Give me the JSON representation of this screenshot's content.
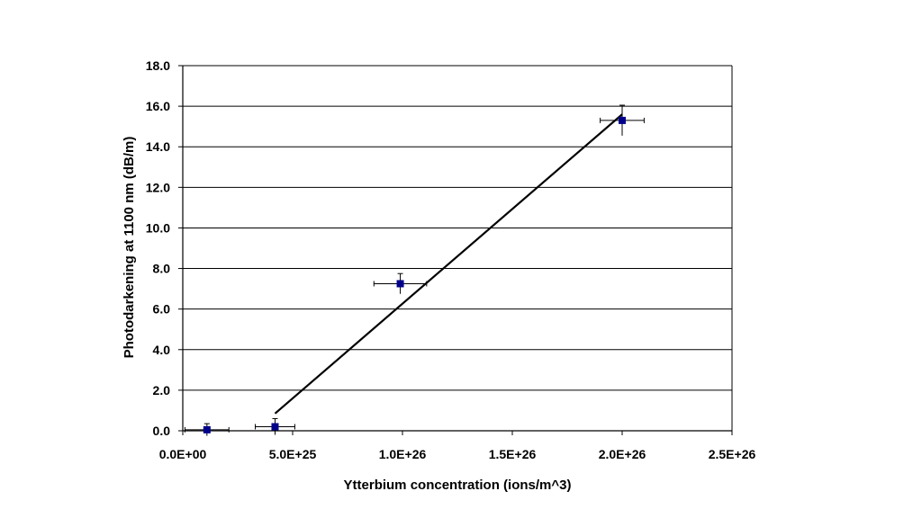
{
  "chart_data": {
    "type": "scatter",
    "title": "",
    "xlabel": "Ytterbium concentration (ions/m^3)",
    "ylabel": "Photodarkening at 1100 nm (dB/m)",
    "xlim": [
      0,
      2.5e+26
    ],
    "ylim": [
      0,
      18
    ],
    "x_ticks": [
      0,
      5e+25,
      1e+26,
      1.5e+26,
      2e+26,
      2.5e+26
    ],
    "x_tick_labels": [
      "0.0E+00",
      "5.0E+25",
      "1.0E+26",
      "1.5E+26",
      "2.0E+26",
      "2.5E+26"
    ],
    "y_ticks": [
      0,
      2,
      4,
      6,
      8,
      10,
      12,
      14,
      16,
      18
    ],
    "y_tick_labels": [
      "0.0",
      "2.0",
      "4.0",
      "6.0",
      "8.0",
      "10.0",
      "12.0",
      "14.0",
      "16.0",
      "18.0"
    ],
    "grid": "horizontal",
    "legend": "none",
    "points": [
      {
        "x": 1.1e+25,
        "y": 0.05,
        "xerr": 1e+25,
        "yerr": 0.3
      },
      {
        "x": 4.2e+25,
        "y": 0.2,
        "xerr": 9e+24,
        "yerr": 0.4
      },
      {
        "x": 9.9e+25,
        "y": 7.25,
        "xerr": 1.2e+25,
        "yerr": 0.5
      },
      {
        "x": 2e+26,
        "y": 15.3,
        "xerr": 1e+25,
        "yerr": 0.75
      }
    ],
    "trendline": {
      "x": [
        4.2e+25,
        2e+26
      ],
      "y": [
        0.85,
        15.6
      ]
    },
    "colors": {
      "marker": "#00008b",
      "line": "#000000",
      "grid": "#000000"
    }
  }
}
